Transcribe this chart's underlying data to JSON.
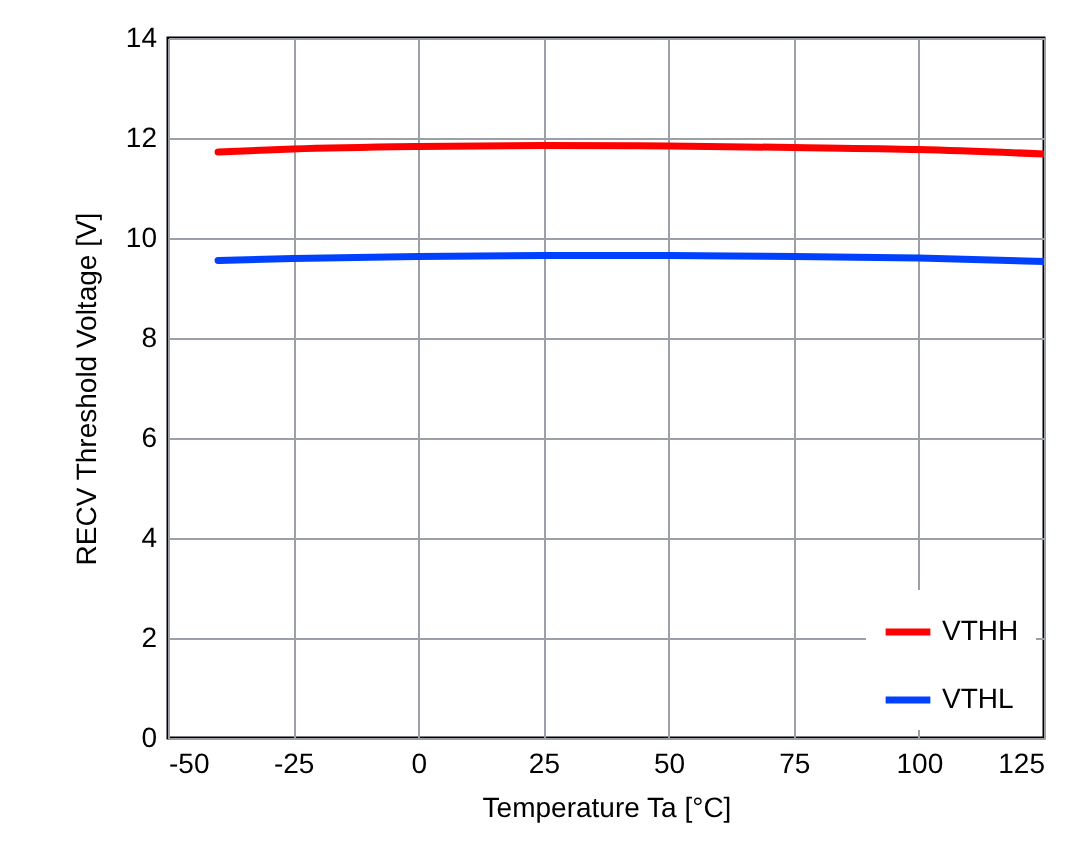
{
  "chart_data": {
    "type": "line",
    "xlabel": "Temperature Ta [°C]",
    "ylabel": "RECV Threshold Voltage  [V]",
    "x": [
      -40,
      -25,
      0,
      25,
      50,
      75,
      100,
      125
    ],
    "series": [
      {
        "name": "VTHH",
        "color": "#ff0000",
        "values": [
          11.72,
          11.78,
          11.83,
          11.85,
          11.84,
          11.81,
          11.77,
          11.68
        ]
      },
      {
        "name": "VTHL",
        "color": "#0041ff",
        "values": [
          9.55,
          9.59,
          9.63,
          9.65,
          9.65,
          9.63,
          9.6,
          9.53
        ]
      }
    ],
    "xlim": [
      -50,
      125
    ],
    "xticks": [
      -50,
      -25,
      0,
      25,
      50,
      75,
      100,
      125
    ],
    "ylim": [
      0,
      14
    ],
    "yticks": [
      0,
      2,
      4,
      6,
      8,
      10,
      12,
      14
    ],
    "grid": true,
    "legend": "bottom right",
    "marker": "none",
    "line_style": "solid"
  }
}
